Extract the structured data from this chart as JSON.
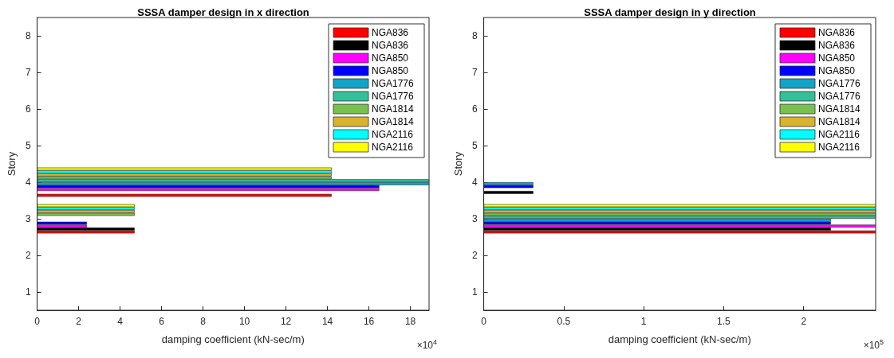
{
  "chart_data": [
    {
      "type": "bar",
      "orientation": "horizontal",
      "title": "SSSA damper design in x direction",
      "xlabel": "damping coefficient (kN-sec/m)",
      "ylabel": "Story",
      "categories": [
        "8",
        "7",
        "6",
        "5",
        "4",
        "3",
        "2",
        "1"
      ],
      "series": [
        {
          "name": "NGA836",
          "color": "#ff0000",
          "values": [
            null,
            null,
            null,
            null,
            14.2,
            4.7,
            null,
            null
          ]
        },
        {
          "name": "NGA836",
          "color": "#000000",
          "values": [
            null,
            null,
            null,
            null,
            null,
            4.7,
            null,
            null
          ]
        },
        {
          "name": "NGA850",
          "color": "#ff00ff",
          "values": [
            null,
            null,
            null,
            null,
            16.5,
            2.4,
            null,
            null
          ]
        },
        {
          "name": "NGA850",
          "color": "#0000ff",
          "values": [
            null,
            null,
            null,
            null,
            16.5,
            2.4,
            null,
            null
          ]
        },
        {
          "name": "NGA1776",
          "color": "#10a4c8",
          "values": [
            null,
            null,
            null,
            null,
            18.9,
            null,
            null,
            null
          ]
        },
        {
          "name": "NGA1776",
          "color": "#33bf99",
          "values": [
            null,
            null,
            null,
            null,
            18.9,
            null,
            null,
            null
          ]
        },
        {
          "name": "NGA1814",
          "color": "#78c150",
          "values": [
            null,
            null,
            null,
            null,
            14.2,
            4.7,
            null,
            null
          ]
        },
        {
          "name": "NGA1814",
          "color": "#d8b42c",
          "values": [
            null,
            null,
            null,
            null,
            14.2,
            4.7,
            null,
            null
          ]
        },
        {
          "name": "NGA2116",
          "color": "#00ffff",
          "values": [
            null,
            null,
            null,
            null,
            14.2,
            4.7,
            null,
            null
          ]
        },
        {
          "name": "NGA2116",
          "color": "#ffff00",
          "values": [
            null,
            null,
            null,
            null,
            14.2,
            4.7,
            null,
            null
          ]
        }
      ],
      "xlim": [
        0,
        18.9
      ],
      "xticks": [
        0,
        2,
        4,
        6,
        8,
        10,
        12,
        14,
        16,
        18
      ],
      "annotations": [
        "×10$^{4}$"
      ],
      "legend": "top right",
      "grid": false
    },
    {
      "type": "bar",
      "orientation": "horizontal",
      "title": "SSSA damper design in y direction",
      "xlabel": "damping coefficient (kN-sec/m)",
      "ylabel": "Story",
      "categories": [
        "8",
        "7",
        "6",
        "5",
        "4",
        "3",
        "2",
        "1"
      ],
      "series": [
        {
          "name": "NGA836",
          "color": "#ff0000",
          "values": [
            null,
            null,
            null,
            null,
            null,
            2.45,
            null,
            null
          ]
        },
        {
          "name": "NGA836",
          "color": "#000000",
          "values": [
            null,
            null,
            null,
            null,
            0.31,
            2.17,
            null,
            null
          ]
        },
        {
          "name": "NGA850",
          "color": "#ff00ff",
          "values": [
            null,
            null,
            null,
            null,
            null,
            2.45,
            null,
            null
          ]
        },
        {
          "name": "NGA850",
          "color": "#0000ff",
          "values": [
            null,
            null,
            null,
            null,
            0.31,
            2.17,
            null,
            null
          ]
        },
        {
          "name": "NGA1776",
          "color": "#10a4c8",
          "values": [
            null,
            null,
            null,
            null,
            0.31,
            2.17,
            null,
            null
          ]
        },
        {
          "name": "NGA1776",
          "color": "#33bf99",
          "values": [
            null,
            null,
            null,
            null,
            null,
            2.45,
            null,
            null
          ]
        },
        {
          "name": "NGA1814",
          "color": "#78c150",
          "values": [
            null,
            null,
            null,
            null,
            null,
            2.45,
            null,
            null
          ]
        },
        {
          "name": "NGA1814",
          "color": "#d8b42c",
          "values": [
            null,
            null,
            null,
            null,
            null,
            2.45,
            null,
            null
          ]
        },
        {
          "name": "NGA2116",
          "color": "#00ffff",
          "values": [
            null,
            null,
            null,
            null,
            null,
            2.45,
            null,
            null
          ]
        },
        {
          "name": "NGA2116",
          "color": "#ffff00",
          "values": [
            null,
            null,
            null,
            null,
            null,
            2.45,
            null,
            null
          ]
        }
      ],
      "xlim": [
        0,
        2.45
      ],
      "xticks": [
        0,
        0.5,
        1,
        1.5,
        2
      ],
      "annotations": [
        "×10$^{5}$"
      ],
      "legend": "top right",
      "grid": false
    }
  ]
}
